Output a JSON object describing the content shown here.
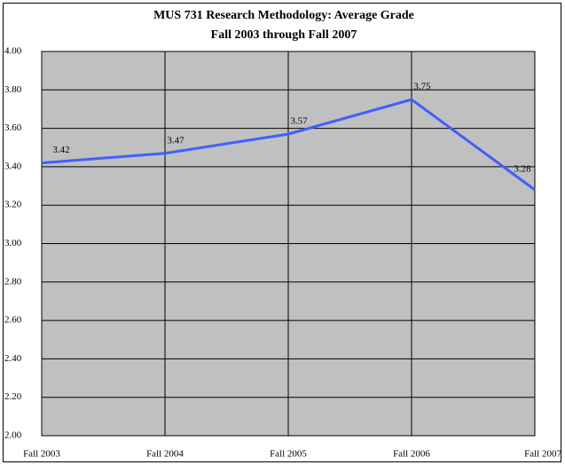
{
  "chart_data": {
    "type": "line",
    "title": "MUS 731 Research Methodology: Average Grade",
    "subtitle": "Fall 2003 through Fall 2007",
    "categories": [
      "Fall 2003",
      "Fall 2004",
      "Fall 2005",
      "Fall 2006",
      "Fall 2007"
    ],
    "series": [
      {
        "name": "Average Grade",
        "color": "#3f5fff",
        "values": [
          3.42,
          3.47,
          3.57,
          3.75,
          3.28
        ]
      }
    ],
    "ylim": [
      2,
      4
    ],
    "yticks": [
      {
        "value": 2,
        "label": "2.00"
      },
      {
        "value": 2.2,
        "label": "2.20"
      },
      {
        "value": 2.4,
        "label": "2.40"
      },
      {
        "value": 2.6,
        "label": "2.60"
      },
      {
        "value": 2.8,
        "label": "2.80"
      },
      {
        "value": 3,
        "label": "3.00"
      },
      {
        "value": 3.2,
        "label": "3.20"
      },
      {
        "value": 3.4,
        "label": "3.40"
      },
      {
        "value": 3.6,
        "label": "3.60"
      },
      {
        "value": 3.8,
        "label": "3.80"
      },
      {
        "value": 4,
        "label": "4.00"
      }
    ],
    "grid": true
  }
}
